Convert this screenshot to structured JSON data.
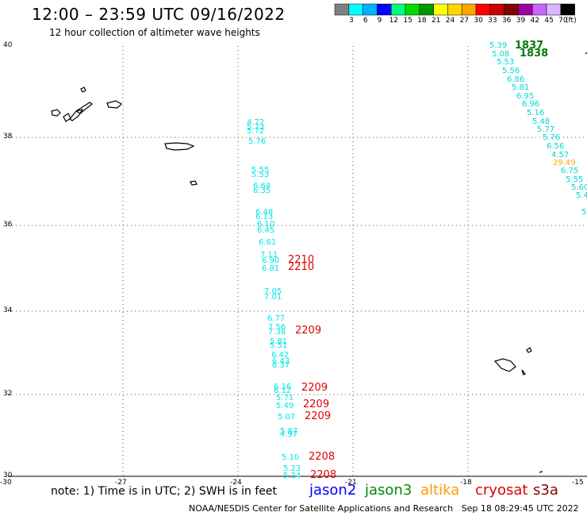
{
  "header": {
    "title": "12:00 – 23:59 UTC 09/16/2022",
    "subtitle": "12 hour collection of altimeter wave heights"
  },
  "colorbar": {
    "colors": [
      "#7f7f7f",
      "#00ffff",
      "#00b2ff",
      "#0000ff",
      "#00ff7f",
      "#00dc00",
      "#009600",
      "#ffff00",
      "#ffd700",
      "#ffa500",
      "#ff0000",
      "#c80000",
      "#820000",
      "#a000a0",
      "#c864ff",
      "#dcb4ff",
      "#000000"
    ],
    "labels": [
      "3",
      "6",
      "9",
      "12",
      "15",
      "18",
      "21",
      "24",
      "27",
      "30",
      "33",
      "36",
      "39",
      "42",
      "45",
      "70",
      "(ft)"
    ]
  },
  "axes": {
    "lat_labels": [
      "40",
      "38",
      "36",
      "34",
      "32",
      "30"
    ],
    "lon_labels": [
      "-30",
      "-27",
      "-24",
      "-21",
      "-18",
      "-15"
    ]
  },
  "left_track": [
    "4.72",
    "5.73",
    "5.72",
    "5.76",
    "5.55",
    "5.53",
    "6.64",
    "6.35",
    "6.48",
    "6.13",
    "6.10",
    "6.45",
    "6.61",
    "7.11",
    "6.90",
    "6.81",
    "7.05",
    "7.01",
    "6.77",
    "7.56",
    "7.38",
    "5.81",
    "5.51",
    "6.42",
    "6.43",
    "6.37",
    "6.16",
    "6.12",
    "5.71",
    "5.49",
    "5.07",
    "5.87",
    "4.97",
    "5.10",
    "5.23",
    "5.24"
  ],
  "right_track": [
    "5.39",
    "5.08",
    "5.53",
    "5.56",
    "6.86",
    "5.81",
    "6.95",
    "6.96",
    "5.16",
    "5.48",
    "5.77",
    "5.76",
    "6.56",
    "4.57",
    "29.49",
    "6.75",
    "5.55",
    "5.60",
    "5.4",
    "5"
  ],
  "pass_labels": [
    "2210",
    "2210",
    "2209",
    "2209",
    "2209",
    "2209",
    "2208",
    "2208",
    "1837",
    "1838"
  ],
  "colors": {
    "left_track": "#00e6e6",
    "right_track": "#00d8d8",
    "cycle_red": "#e00000",
    "cycle_green": "#007a00",
    "outlier": "#ffa500"
  },
  "footer": {
    "note": "note: 1) Time is in UTC; 2) SWH is in feet",
    "satellites": [
      {
        "name": "jason2",
        "color": "#0000ff"
      },
      {
        "name": "jason3",
        "color": "#008c00"
      },
      {
        "name": "altika",
        "color": "#ff9900"
      },
      {
        "name": "cryosat",
        "color": "#dd0000"
      },
      {
        "name": "s3a",
        "color": "#8b0000"
      }
    ],
    "credit": "NOAA/NESDIS Center for Satellite Applications and Research",
    "timestamp": "Sep 18 08:29:45 UTC 2022"
  }
}
